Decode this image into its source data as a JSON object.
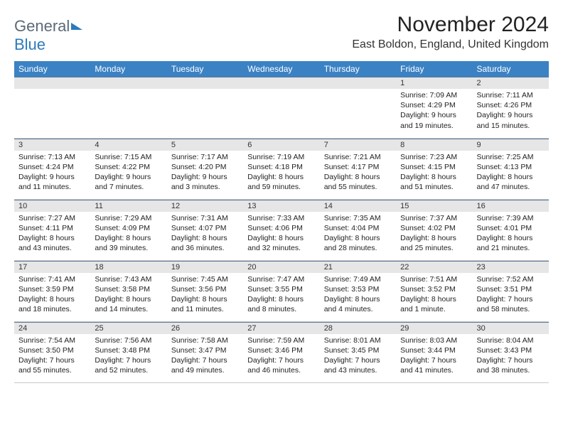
{
  "logo": {
    "text1": "General",
    "text2": "Blue"
  },
  "title": "November 2024",
  "location": "East Boldon, England, United Kingdom",
  "colors": {
    "header_bg": "#3b82c4",
    "header_fg": "#ffffff",
    "daynum_bg": "#e6e6e6",
    "cell_border_top": "#5a7a9a",
    "row_divider": "#c9c9c9",
    "logo_gray": "#5a6a78",
    "logo_blue": "#2b7bbd"
  },
  "weekdays": [
    "Sunday",
    "Monday",
    "Tuesday",
    "Wednesday",
    "Thursday",
    "Friday",
    "Saturday"
  ],
  "first_weekday_index": 5,
  "days": [
    {
      "n": 1,
      "sunrise": "7:09 AM",
      "sunset": "4:29 PM",
      "dl_h": 9,
      "dl_m": 19
    },
    {
      "n": 2,
      "sunrise": "7:11 AM",
      "sunset": "4:26 PM",
      "dl_h": 9,
      "dl_m": 15
    },
    {
      "n": 3,
      "sunrise": "7:13 AM",
      "sunset": "4:24 PM",
      "dl_h": 9,
      "dl_m": 11
    },
    {
      "n": 4,
      "sunrise": "7:15 AM",
      "sunset": "4:22 PM",
      "dl_h": 9,
      "dl_m": 7
    },
    {
      "n": 5,
      "sunrise": "7:17 AM",
      "sunset": "4:20 PM",
      "dl_h": 9,
      "dl_m": 3
    },
    {
      "n": 6,
      "sunrise": "7:19 AM",
      "sunset": "4:18 PM",
      "dl_h": 8,
      "dl_m": 59
    },
    {
      "n": 7,
      "sunrise": "7:21 AM",
      "sunset": "4:17 PM",
      "dl_h": 8,
      "dl_m": 55
    },
    {
      "n": 8,
      "sunrise": "7:23 AM",
      "sunset": "4:15 PM",
      "dl_h": 8,
      "dl_m": 51
    },
    {
      "n": 9,
      "sunrise": "7:25 AM",
      "sunset": "4:13 PM",
      "dl_h": 8,
      "dl_m": 47
    },
    {
      "n": 10,
      "sunrise": "7:27 AM",
      "sunset": "4:11 PM",
      "dl_h": 8,
      "dl_m": 43
    },
    {
      "n": 11,
      "sunrise": "7:29 AM",
      "sunset": "4:09 PM",
      "dl_h": 8,
      "dl_m": 39
    },
    {
      "n": 12,
      "sunrise": "7:31 AM",
      "sunset": "4:07 PM",
      "dl_h": 8,
      "dl_m": 36
    },
    {
      "n": 13,
      "sunrise": "7:33 AM",
      "sunset": "4:06 PM",
      "dl_h": 8,
      "dl_m": 32
    },
    {
      "n": 14,
      "sunrise": "7:35 AM",
      "sunset": "4:04 PM",
      "dl_h": 8,
      "dl_m": 28
    },
    {
      "n": 15,
      "sunrise": "7:37 AM",
      "sunset": "4:02 PM",
      "dl_h": 8,
      "dl_m": 25
    },
    {
      "n": 16,
      "sunrise": "7:39 AM",
      "sunset": "4:01 PM",
      "dl_h": 8,
      "dl_m": 21
    },
    {
      "n": 17,
      "sunrise": "7:41 AM",
      "sunset": "3:59 PM",
      "dl_h": 8,
      "dl_m": 18
    },
    {
      "n": 18,
      "sunrise": "7:43 AM",
      "sunset": "3:58 PM",
      "dl_h": 8,
      "dl_m": 14
    },
    {
      "n": 19,
      "sunrise": "7:45 AM",
      "sunset": "3:56 PM",
      "dl_h": 8,
      "dl_m": 11
    },
    {
      "n": 20,
      "sunrise": "7:47 AM",
      "sunset": "3:55 PM",
      "dl_h": 8,
      "dl_m": 8
    },
    {
      "n": 21,
      "sunrise": "7:49 AM",
      "sunset": "3:53 PM",
      "dl_h": 8,
      "dl_m": 4
    },
    {
      "n": 22,
      "sunrise": "7:51 AM",
      "sunset": "3:52 PM",
      "dl_h": 8,
      "dl_m": 1
    },
    {
      "n": 23,
      "sunrise": "7:52 AM",
      "sunset": "3:51 PM",
      "dl_h": 7,
      "dl_m": 58
    },
    {
      "n": 24,
      "sunrise": "7:54 AM",
      "sunset": "3:50 PM",
      "dl_h": 7,
      "dl_m": 55
    },
    {
      "n": 25,
      "sunrise": "7:56 AM",
      "sunset": "3:48 PM",
      "dl_h": 7,
      "dl_m": 52
    },
    {
      "n": 26,
      "sunrise": "7:58 AM",
      "sunset": "3:47 PM",
      "dl_h": 7,
      "dl_m": 49
    },
    {
      "n": 27,
      "sunrise": "7:59 AM",
      "sunset": "3:46 PM",
      "dl_h": 7,
      "dl_m": 46
    },
    {
      "n": 28,
      "sunrise": "8:01 AM",
      "sunset": "3:45 PM",
      "dl_h": 7,
      "dl_m": 43
    },
    {
      "n": 29,
      "sunrise": "8:03 AM",
      "sunset": "3:44 PM",
      "dl_h": 7,
      "dl_m": 41
    },
    {
      "n": 30,
      "sunrise": "8:04 AM",
      "sunset": "3:43 PM",
      "dl_h": 7,
      "dl_m": 38
    }
  ],
  "labels": {
    "sunrise": "Sunrise",
    "sunset": "Sunset",
    "daylight": "Daylight",
    "hours": "hours",
    "and": "and",
    "minutes": "minutes",
    "minute": "minute"
  }
}
